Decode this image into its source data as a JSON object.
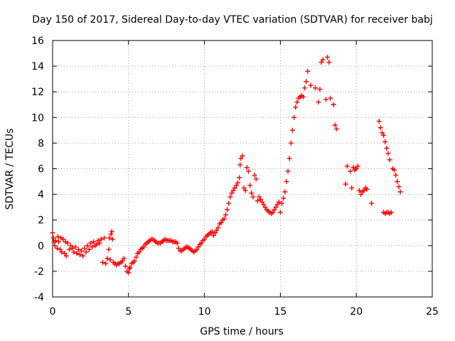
{
  "chart_data": {
    "type": "scatter",
    "title": "Day 150 of 2017, Sidereal Day-to-day VTEC variation (SDTVAR) for receiver babj",
    "xlabel": "GPS time / hours",
    "ylabel": "SDTVAR / TECUs",
    "xlim": [
      0,
      25
    ],
    "ylim": [
      -4,
      16
    ],
    "xticks": [
      0,
      5,
      10,
      15,
      20,
      25
    ],
    "yticks": [
      -4,
      -2,
      0,
      2,
      4,
      6,
      8,
      10,
      12,
      14,
      16
    ],
    "grid": true,
    "marker": "plus",
    "color": "#ff0000",
    "series": [
      {
        "points": [
          [
            0.0,
            1.0
          ],
          [
            0.05,
            0.6
          ],
          [
            0.1,
            0.3
          ],
          [
            0.15,
            0.0
          ],
          [
            0.2,
            0.4
          ],
          [
            0.3,
            -0.2
          ],
          [
            0.35,
            0.7
          ],
          [
            0.4,
            0.3
          ],
          [
            0.5,
            -0.3
          ],
          [
            0.55,
            0.6
          ],
          [
            0.6,
            -0.5
          ],
          [
            0.7,
            0.5
          ],
          [
            0.8,
            -0.6
          ],
          [
            0.85,
            0.3
          ],
          [
            0.9,
            -0.8
          ],
          [
            1.0,
            0.2
          ],
          [
            1.1,
            -0.3
          ],
          [
            1.2,
            0.0
          ],
          [
            1.3,
            -0.2
          ],
          [
            1.4,
            -0.5
          ],
          [
            1.5,
            -0.1
          ],
          [
            1.6,
            -0.6
          ],
          [
            1.7,
            -0.3
          ],
          [
            1.8,
            -0.7
          ],
          [
            1.9,
            -0.4
          ],
          [
            2.0,
            -0.8
          ],
          [
            2.1,
            -0.2
          ],
          [
            2.2,
            -0.5
          ],
          [
            2.3,
            0.0
          ],
          [
            2.4,
            -0.3
          ],
          [
            2.5,
            0.2
          ],
          [
            2.6,
            -0.1
          ],
          [
            2.7,
            0.3
          ],
          [
            2.8,
            0.0
          ],
          [
            2.9,
            0.1
          ],
          [
            3.0,
            0.4
          ],
          [
            3.1,
            0.2
          ],
          [
            3.2,
            0.5
          ],
          [
            3.3,
            -1.3
          ],
          [
            3.4,
            0.6
          ],
          [
            3.5,
            -1.4
          ],
          [
            3.6,
            -1.0
          ],
          [
            3.7,
            -0.3
          ],
          [
            3.75,
            0.6
          ],
          [
            3.8,
            -1.1
          ],
          [
            3.85,
            0.9
          ],
          [
            3.9,
            1.1
          ],
          [
            3.95,
            0.5
          ],
          [
            4.0,
            -1.3
          ],
          [
            4.1,
            -1.4
          ],
          [
            4.2,
            -1.5
          ],
          [
            4.3,
            -1.4
          ],
          [
            4.4,
            -1.4
          ],
          [
            4.5,
            -1.3
          ],
          [
            4.6,
            -1.2
          ],
          [
            4.7,
            -1.0
          ],
          [
            4.8,
            -1.6
          ],
          [
            4.9,
            -2.0
          ],
          [
            5.0,
            -2.1
          ],
          [
            5.05,
            -1.8
          ],
          [
            5.1,
            -1.7
          ],
          [
            5.2,
            -1.4
          ],
          [
            5.3,
            -1.3
          ],
          [
            5.4,
            -1.2
          ],
          [
            5.5,
            -0.9
          ],
          [
            5.6,
            -0.6
          ],
          [
            5.7,
            -0.5
          ],
          [
            5.8,
            -0.3
          ],
          [
            5.9,
            -0.2
          ],
          [
            6.0,
            -0.1
          ],
          [
            6.1,
            0.1
          ],
          [
            6.2,
            0.2
          ],
          [
            6.3,
            0.3
          ],
          [
            6.4,
            0.4
          ],
          [
            6.5,
            0.5
          ],
          [
            6.6,
            0.5
          ],
          [
            6.7,
            0.4
          ],
          [
            6.8,
            0.3
          ],
          [
            6.9,
            0.2
          ],
          [
            7.0,
            0.2
          ],
          [
            7.1,
            0.2
          ],
          [
            7.2,
            0.3
          ],
          [
            7.3,
            0.4
          ],
          [
            7.4,
            0.5
          ],
          [
            7.5,
            0.4
          ],
          [
            7.6,
            0.4
          ],
          [
            7.7,
            0.4
          ],
          [
            7.8,
            0.4
          ],
          [
            7.9,
            0.3
          ],
          [
            8.0,
            0.3
          ],
          [
            8.1,
            0.3
          ],
          [
            8.2,
            0.2
          ],
          [
            8.3,
            -0.2
          ],
          [
            8.4,
            -0.4
          ],
          [
            8.5,
            -0.4
          ],
          [
            8.6,
            -0.3
          ],
          [
            8.7,
            -0.2
          ],
          [
            8.8,
            -0.1
          ],
          [
            8.9,
            -0.1
          ],
          [
            9.0,
            -0.2
          ],
          [
            9.1,
            -0.3
          ],
          [
            9.2,
            -0.4
          ],
          [
            9.3,
            -0.5
          ],
          [
            9.4,
            -0.4
          ],
          [
            9.5,
            -0.3
          ],
          [
            9.6,
            -0.1
          ],
          [
            9.7,
            0.1
          ],
          [
            9.8,
            0.2
          ],
          [
            9.9,
            0.4
          ],
          [
            10.0,
            0.5
          ],
          [
            10.1,
            0.7
          ],
          [
            10.2,
            0.8
          ],
          [
            10.3,
            0.9
          ],
          [
            10.4,
            1.0
          ],
          [
            10.5,
            1.1
          ],
          [
            10.6,
            0.8
          ],
          [
            10.7,
            1.0
          ],
          [
            10.8,
            1.2
          ],
          [
            10.9,
            1.4
          ],
          [
            11.0,
            1.7
          ],
          [
            11.1,
            1.8
          ],
          [
            11.2,
            2.0
          ],
          [
            11.3,
            2.1
          ],
          [
            11.4,
            2.4
          ],
          [
            11.5,
            2.8
          ],
          [
            11.6,
            3.3
          ],
          [
            11.7,
            3.8
          ],
          [
            11.8,
            4.1
          ],
          [
            11.9,
            4.3
          ],
          [
            12.0,
            4.5
          ],
          [
            12.1,
            4.7
          ],
          [
            12.2,
            4.9
          ],
          [
            12.3,
            5.3
          ],
          [
            12.35,
            6.3
          ],
          [
            12.4,
            6.8
          ],
          [
            12.5,
            7.0
          ],
          [
            12.6,
            4.5
          ],
          [
            12.7,
            4.3
          ],
          [
            12.8,
            6.1
          ],
          [
            12.9,
            5.8
          ],
          [
            13.0,
            4.7
          ],
          [
            13.1,
            4.1
          ],
          [
            13.2,
            3.8
          ],
          [
            13.3,
            5.5
          ],
          [
            13.4,
            5.2
          ],
          [
            13.5,
            3.5
          ],
          [
            13.6,
            3.8
          ],
          [
            13.7,
            3.6
          ],
          [
            13.8,
            3.4
          ],
          [
            13.9,
            3.2
          ],
          [
            14.0,
            3.0
          ],
          [
            14.1,
            2.8
          ],
          [
            14.2,
            2.7
          ],
          [
            14.3,
            2.6
          ],
          [
            14.4,
            2.5
          ],
          [
            14.5,
            2.6
          ],
          [
            14.6,
            2.8
          ],
          [
            14.7,
            3.0
          ],
          [
            14.8,
            3.2
          ],
          [
            14.9,
            3.4
          ],
          [
            15.0,
            2.6
          ],
          [
            15.1,
            3.3
          ],
          [
            15.2,
            3.7
          ],
          [
            15.3,
            4.2
          ],
          [
            15.4,
            5.0
          ],
          [
            15.5,
            5.8
          ],
          [
            15.6,
            6.8
          ],
          [
            15.7,
            8.0
          ],
          [
            15.8,
            9.0
          ],
          [
            15.9,
            10.0
          ],
          [
            16.0,
            10.8
          ],
          [
            16.1,
            11.2
          ],
          [
            16.2,
            11.5
          ],
          [
            16.3,
            11.6
          ],
          [
            16.4,
            11.7
          ],
          [
            16.5,
            11.6
          ],
          [
            16.6,
            12.3
          ],
          [
            16.7,
            12.8
          ],
          [
            16.8,
            13.6
          ],
          [
            17.0,
            12.5
          ],
          [
            17.3,
            12.3
          ],
          [
            17.5,
            11.2
          ],
          [
            17.6,
            12.2
          ],
          [
            17.7,
            14.3
          ],
          [
            17.8,
            14.5
          ],
          [
            18.0,
            11.4
          ],
          [
            18.1,
            14.7
          ],
          [
            18.2,
            14.3
          ],
          [
            18.3,
            11.5
          ],
          [
            18.5,
            11.0
          ],
          [
            18.6,
            9.4
          ],
          [
            18.7,
            9.1
          ],
          [
            19.3,
            4.8
          ],
          [
            19.4,
            6.2
          ],
          [
            19.6,
            5.8
          ],
          [
            19.7,
            4.5
          ],
          [
            19.8,
            6.1
          ],
          [
            19.9,
            5.9
          ],
          [
            20.0,
            6.0
          ],
          [
            20.1,
            6.2
          ],
          [
            20.2,
            4.3
          ],
          [
            20.3,
            4.0
          ],
          [
            20.4,
            4.2
          ],
          [
            20.5,
            4.3
          ],
          [
            20.6,
            4.5
          ],
          [
            20.7,
            4.4
          ],
          [
            21.0,
            3.3
          ],
          [
            21.5,
            9.7
          ],
          [
            21.6,
            9.2
          ],
          [
            21.7,
            8.8
          ],
          [
            21.8,
            8.6
          ],
          [
            21.9,
            8.1
          ],
          [
            22.0,
            7.6
          ],
          [
            22.1,
            7.2
          ],
          [
            22.2,
            6.7
          ],
          [
            21.8,
            2.6
          ],
          [
            21.9,
            2.5
          ],
          [
            22.0,
            2.6
          ],
          [
            22.1,
            2.6
          ],
          [
            22.2,
            2.5
          ],
          [
            22.3,
            2.6
          ],
          [
            22.4,
            6.0
          ],
          [
            22.5,
            5.9
          ],
          [
            22.6,
            5.5
          ],
          [
            22.7,
            5.0
          ],
          [
            22.8,
            4.6
          ],
          [
            22.9,
            4.2
          ]
        ]
      }
    ]
  }
}
